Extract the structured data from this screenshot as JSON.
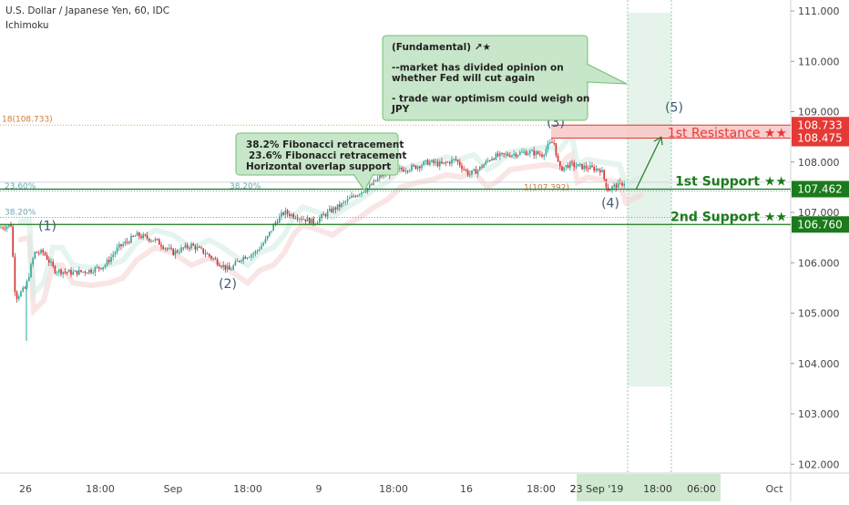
{
  "header": {
    "title": "U.S. Dollar / Japanese Yen, 60, IDC",
    "indicator": "Ichimoku"
  },
  "colors": {
    "up": "#26a69a",
    "down": "#d32f2f",
    "support": "#1b7a1b",
    "resistance": "#e53935",
    "note_bg": "#c8e6c9",
    "note_border": "#6fbf73",
    "fib": "#6aa7b5"
  },
  "chart_data": {
    "type": "candlestick",
    "symbol": "USDJPY",
    "ylim": [
      101.8,
      111.2
    ],
    "y_ticks": [
      "111.000",
      "110.000",
      "109.000",
      "108.000",
      "107.000",
      "106.000",
      "105.000",
      "104.000",
      "103.000",
      "102.000"
    ],
    "x_labels": [
      "26",
      "18:00",
      "Sep",
      "18:00",
      "9",
      "18:00",
      "16",
      "18:00",
      "23 Sep '19",
      "18:00",
      "06:00",
      "Oct"
    ],
    "price_path": [
      [
        0,
        106.7
      ],
      [
        12,
        106.75
      ],
      [
        17,
        105.3
      ],
      [
        28,
        105.5
      ],
      [
        38,
        106.2
      ],
      [
        48,
        106.2
      ],
      [
        60,
        105.85
      ],
      [
        80,
        105.8
      ],
      [
        100,
        105.85
      ],
      [
        115,
        105.95
      ],
      [
        130,
        106.3
      ],
      [
        150,
        106.55
      ],
      [
        170,
        106.45
      ],
      [
        190,
        106.2
      ],
      [
        210,
        106.35
      ],
      [
        225,
        106.2
      ],
      [
        240,
        106.0
      ],
      [
        252,
        105.85
      ],
      [
        265,
        106.1
      ],
      [
        280,
        106.2
      ],
      [
        292,
        106.45
      ],
      [
        302,
        106.8
      ],
      [
        312,
        107.0
      ],
      [
        330,
        106.9
      ],
      [
        345,
        106.8
      ],
      [
        360,
        107.0
      ],
      [
        375,
        107.15
      ],
      [
        390,
        107.35
      ],
      [
        405,
        107.5
      ],
      [
        420,
        107.75
      ],
      [
        440,
        107.85
      ],
      [
        455,
        107.9
      ],
      [
        470,
        108.0
      ],
      [
        485,
        107.95
      ],
      [
        500,
        108.05
      ],
      [
        515,
        107.75
      ],
      [
        525,
        107.85
      ],
      [
        540,
        108.1
      ],
      [
        560,
        108.15
      ],
      [
        580,
        108.2
      ],
      [
        595,
        108.15
      ],
      [
        603,
        108.35
      ],
      [
        608,
        108.4
      ],
      [
        614,
        107.85
      ],
      [
        625,
        107.95
      ],
      [
        640,
        107.9
      ],
      [
        660,
        107.85
      ],
      [
        667,
        107.45
      ],
      [
        678,
        107.55
      ],
      [
        686,
        107.6
      ]
    ],
    "levels": [
      {
        "label": "1st Resistance ★★",
        "low": 108.475,
        "high": 108.733,
        "low_label": "108.475",
        "high_label": "108.733"
      },
      {
        "label": "1st Support ★★",
        "value": 107.462,
        "value_label": "107.462"
      },
      {
        "label": "2nd Support ★★",
        "value": 106.76,
        "value_label": "106.760"
      }
    ],
    "fib_labels": [
      {
        "text": "18(108.733)",
        "y": 108.75
      },
      {
        "text": "23.60%",
        "y": 107.42
      },
      {
        "text": "38.20%",
        "y": 107.42
      },
      {
        "text": "38.20%",
        "y": 106.9
      },
      {
        "text": "1(107.392)",
        "y": 107.39
      }
    ],
    "waves": [
      {
        "label": "(1)",
        "x": 52,
        "y": 106.65
      },
      {
        "label": "(2)",
        "x": 250,
        "y": 105.5
      },
      {
        "label": "(3)",
        "x": 610,
        "y": 108.7
      },
      {
        "label": "(4)",
        "x": 670,
        "y": 107.1
      },
      {
        "label": "(5)",
        "x": 740,
        "y": 109.0
      }
    ],
    "notes": [
      {
        "lines": [
          "38.2% Fibonacci retracement",
          "23.6% Fibonacci retracement",
          "Horizontal overlap support"
        ]
      },
      {
        "lines": [
          "(Fundamental) ↗★",
          "",
          "--market has divided opinion on",
          "whether Fed will cut again",
          "",
          "- trade war optimism could weigh on",
          "JPY"
        ]
      }
    ]
  }
}
